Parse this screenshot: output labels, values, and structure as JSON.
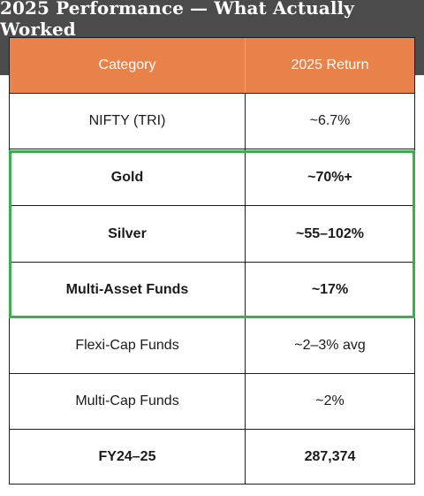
{
  "title": "2025 Performance — What Actually Worked",
  "colors": {
    "header_bg": "#e8824a",
    "banner_bg": "#4b4b4b",
    "highlight": "#3dae4d"
  },
  "table": {
    "headers": [
      "Category",
      "2025 Return"
    ],
    "rows": [
      {
        "category": "NIFTY (TRI)",
        "return": "~6.7%"
      },
      {
        "category": "Gold",
        "return": "~70%+"
      },
      {
        "category": "Silver",
        "return": "~55–102%"
      },
      {
        "category": "Multi-Asset Funds",
        "return": "~17%"
      },
      {
        "category": "Flexi-Cap Funds",
        "return": "~2–3% avg"
      },
      {
        "category": "Multi-Cap Funds",
        "return": "~2%"
      },
      {
        "category": "FY24–25",
        "return": "287,374"
      }
    ]
  }
}
